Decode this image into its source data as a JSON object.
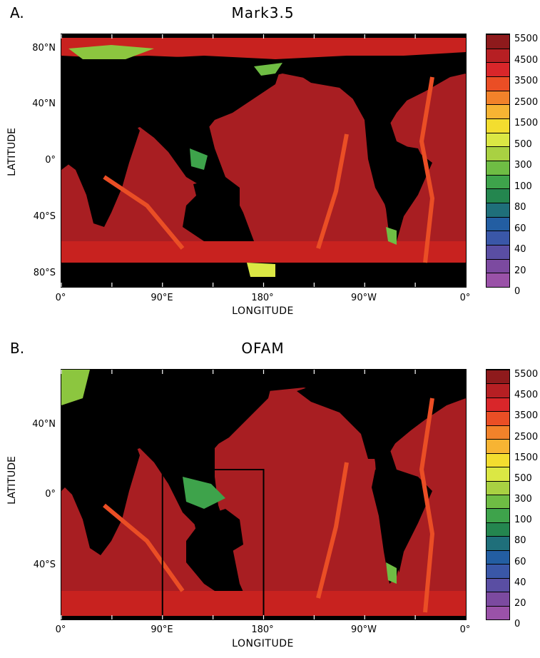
{
  "colorbar": {
    "labels": [
      "5500",
      "4500",
      "3500",
      "2500",
      "1500",
      "500",
      "300",
      "100",
      "80",
      "60",
      "40",
      "20",
      "0"
    ],
    "colors": [
      "#8e1a1c",
      "#b61f23",
      "#d9262a",
      "#ea4e25",
      "#f2822a",
      "#f7b433",
      "#f3dd2f",
      "#dbe744",
      "#a9d142",
      "#6fbd44",
      "#3ea34b",
      "#24864f",
      "#1f6f7a",
      "#235ea2",
      "#3a57a8",
      "#5a4ea3",
      "#7c4aa0",
      "#9a52a8"
    ]
  },
  "panels": [
    {
      "letter": "A.",
      "title": "Mark3.5",
      "ylabel": "LATITUDE",
      "xlabel": "LONGITUDE",
      "yticks": [
        "80°N",
        "40°N",
        "0°",
        "40°S",
        "80°S"
      ],
      "xticks": [
        "0°",
        "90°E",
        "180°",
        "90°W",
        "0°"
      ],
      "lat_range": [
        -90,
        90
      ],
      "box": null
    },
    {
      "letter": "B.",
      "title": "OFAM",
      "ylabel": "LATITUDE",
      "xlabel": "LONGITUDE",
      "yticks": [
        "40°N",
        "0°",
        "40°S"
      ],
      "xticks": [
        "0°",
        "90°E",
        "180°",
        "90°W",
        "0°"
      ],
      "lat_range": [
        -75,
        75
      ],
      "box": {
        "lon": [
          90,
          180
        ],
        "lat": [
          -75,
          15
        ]
      }
    }
  ]
}
